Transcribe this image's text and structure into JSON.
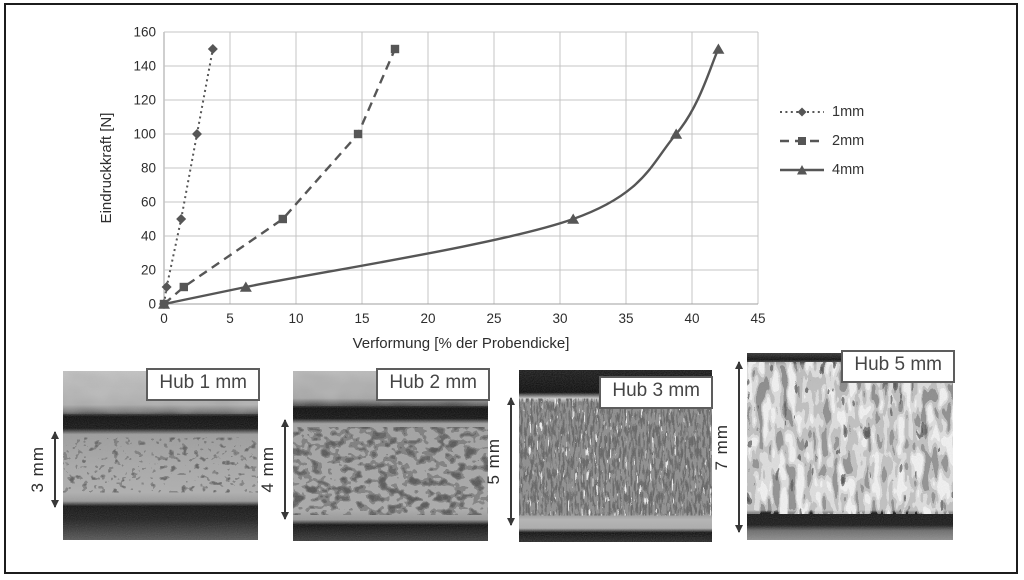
{
  "chart_data": {
    "type": "line",
    "title": "",
    "xlabel": "Verformung [% der Probendicke]",
    "ylabel": "Eindruckkraft [N]",
    "xlim": [
      0,
      45
    ],
    "ylim": [
      0,
      160
    ],
    "x_tick_step": 5,
    "y_tick_step": 20,
    "grid": true,
    "legend_position": "right",
    "series_color": "#565656",
    "series": [
      {
        "name": "1mm",
        "marker": "diamond",
        "line_style": "dotted",
        "smooth": false,
        "points": [
          [
            0,
            0
          ],
          [
            0.2,
            10
          ],
          [
            1.3,
            50
          ],
          [
            2.5,
            100
          ],
          [
            3.7,
            150
          ]
        ]
      },
      {
        "name": "2mm",
        "marker": "square",
        "line_style": "dashed",
        "smooth": false,
        "points": [
          [
            0,
            0
          ],
          [
            1.5,
            10
          ],
          [
            9,
            50
          ],
          [
            14.7,
            100
          ],
          [
            17.5,
            150
          ]
        ]
      },
      {
        "name": "4mm",
        "marker": "triangle",
        "line_style": "solid",
        "smooth": true,
        "points": [
          [
            0,
            0
          ],
          [
            6.2,
            10
          ],
          [
            31,
            50
          ],
          [
            38.8,
            100
          ],
          [
            42,
            150
          ]
        ]
      }
    ]
  },
  "specimens": [
    {
      "label": "Hub 1 mm",
      "thickness": "3 mm"
    },
    {
      "label": "Hub 2 mm",
      "thickness": "4 mm"
    },
    {
      "label": "Hub 3 mm",
      "thickness": "5 mm"
    },
    {
      "label": "Hub 5 mm",
      "thickness": "7 mm"
    }
  ]
}
